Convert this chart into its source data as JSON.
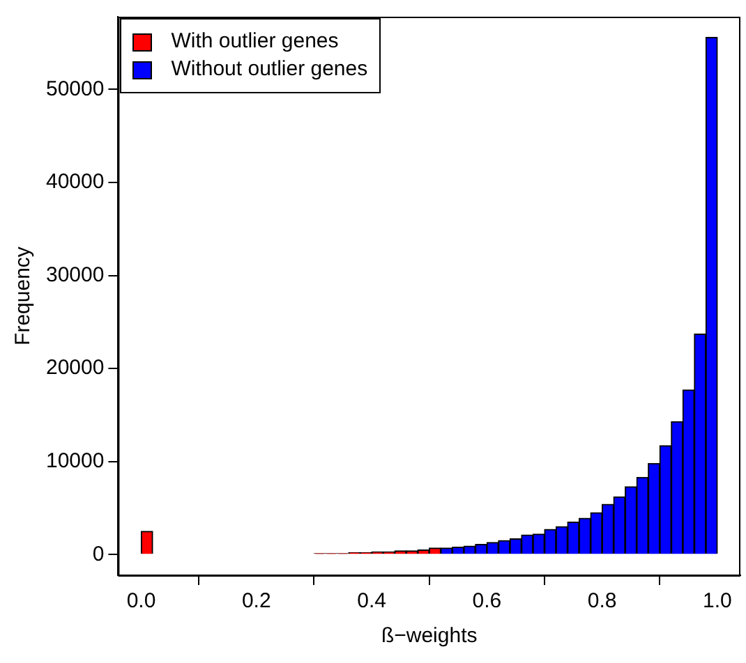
{
  "chart_data": {
    "type": "histogram",
    "xlabel": "ß−weights",
    "ylabel": "Frequency",
    "bins": [
      0,
      0.02,
      0.04,
      0.06,
      0.08,
      0.1,
      0.12,
      0.14,
      0.16,
      0.18,
      0.2,
      0.22,
      0.24,
      0.26,
      0.28,
      0.3,
      0.32,
      0.34,
      0.36,
      0.38,
      0.4,
      0.42,
      0.44,
      0.46,
      0.48,
      0.5,
      0.52,
      0.54,
      0.56,
      0.58,
      0.6,
      0.62,
      0.64,
      0.66,
      0.68,
      0.7,
      0.72,
      0.74,
      0.76,
      0.78,
      0.8,
      0.82,
      0.84,
      0.86,
      0.88,
      0.9,
      0.92,
      0.94,
      0.96,
      0.98,
      1
    ],
    "series": [
      {
        "name": "With outlier genes",
        "color": "#ff0000",
        "values": [
          2500,
          0,
          0,
          0,
          0,
          0,
          0,
          0,
          0,
          0,
          0,
          0,
          0,
          0,
          0,
          100,
          100,
          100,
          200,
          200,
          300,
          300,
          400,
          400,
          500,
          700,
          null,
          null,
          null,
          null,
          null,
          null,
          null,
          null,
          null,
          null,
          null,
          null,
          null,
          null,
          null,
          null,
          null,
          null,
          null,
          null,
          null,
          null,
          null,
          null
        ]
      },
      {
        "name": "Without outlier genes",
        "color": "#0000ff",
        "values": [
          null,
          null,
          null,
          null,
          null,
          null,
          null,
          null,
          null,
          null,
          null,
          null,
          null,
          null,
          null,
          null,
          null,
          null,
          null,
          null,
          null,
          null,
          null,
          null,
          null,
          null,
          700,
          800,
          900,
          1100,
          1300,
          1500,
          1700,
          2100,
          2200,
          2700,
          3000,
          3500,
          3900,
          4500,
          5400,
          6200,
          7300,
          8300,
          9800,
          11700,
          14300,
          17700,
          23700,
          55600
        ]
      }
    ],
    "xlim": [
      -0.04,
      1.04
    ],
    "xticks": [
      {
        "value": 0,
        "label": "0.0"
      },
      {
        "value": 0.2,
        "label": "0.2"
      },
      {
        "value": 0.4,
        "label": "0.4"
      },
      {
        "value": 0.6,
        "label": "0.6"
      },
      {
        "value": 0.8,
        "label": "0.8"
      },
      {
        "value": 1,
        "label": "1.0"
      }
    ],
    "ylim": [
      -2224,
      57824
    ],
    "yticks": [
      0,
      10000,
      20000,
      30000,
      40000,
      50000
    ],
    "grid": false,
    "legend": "top left"
  }
}
